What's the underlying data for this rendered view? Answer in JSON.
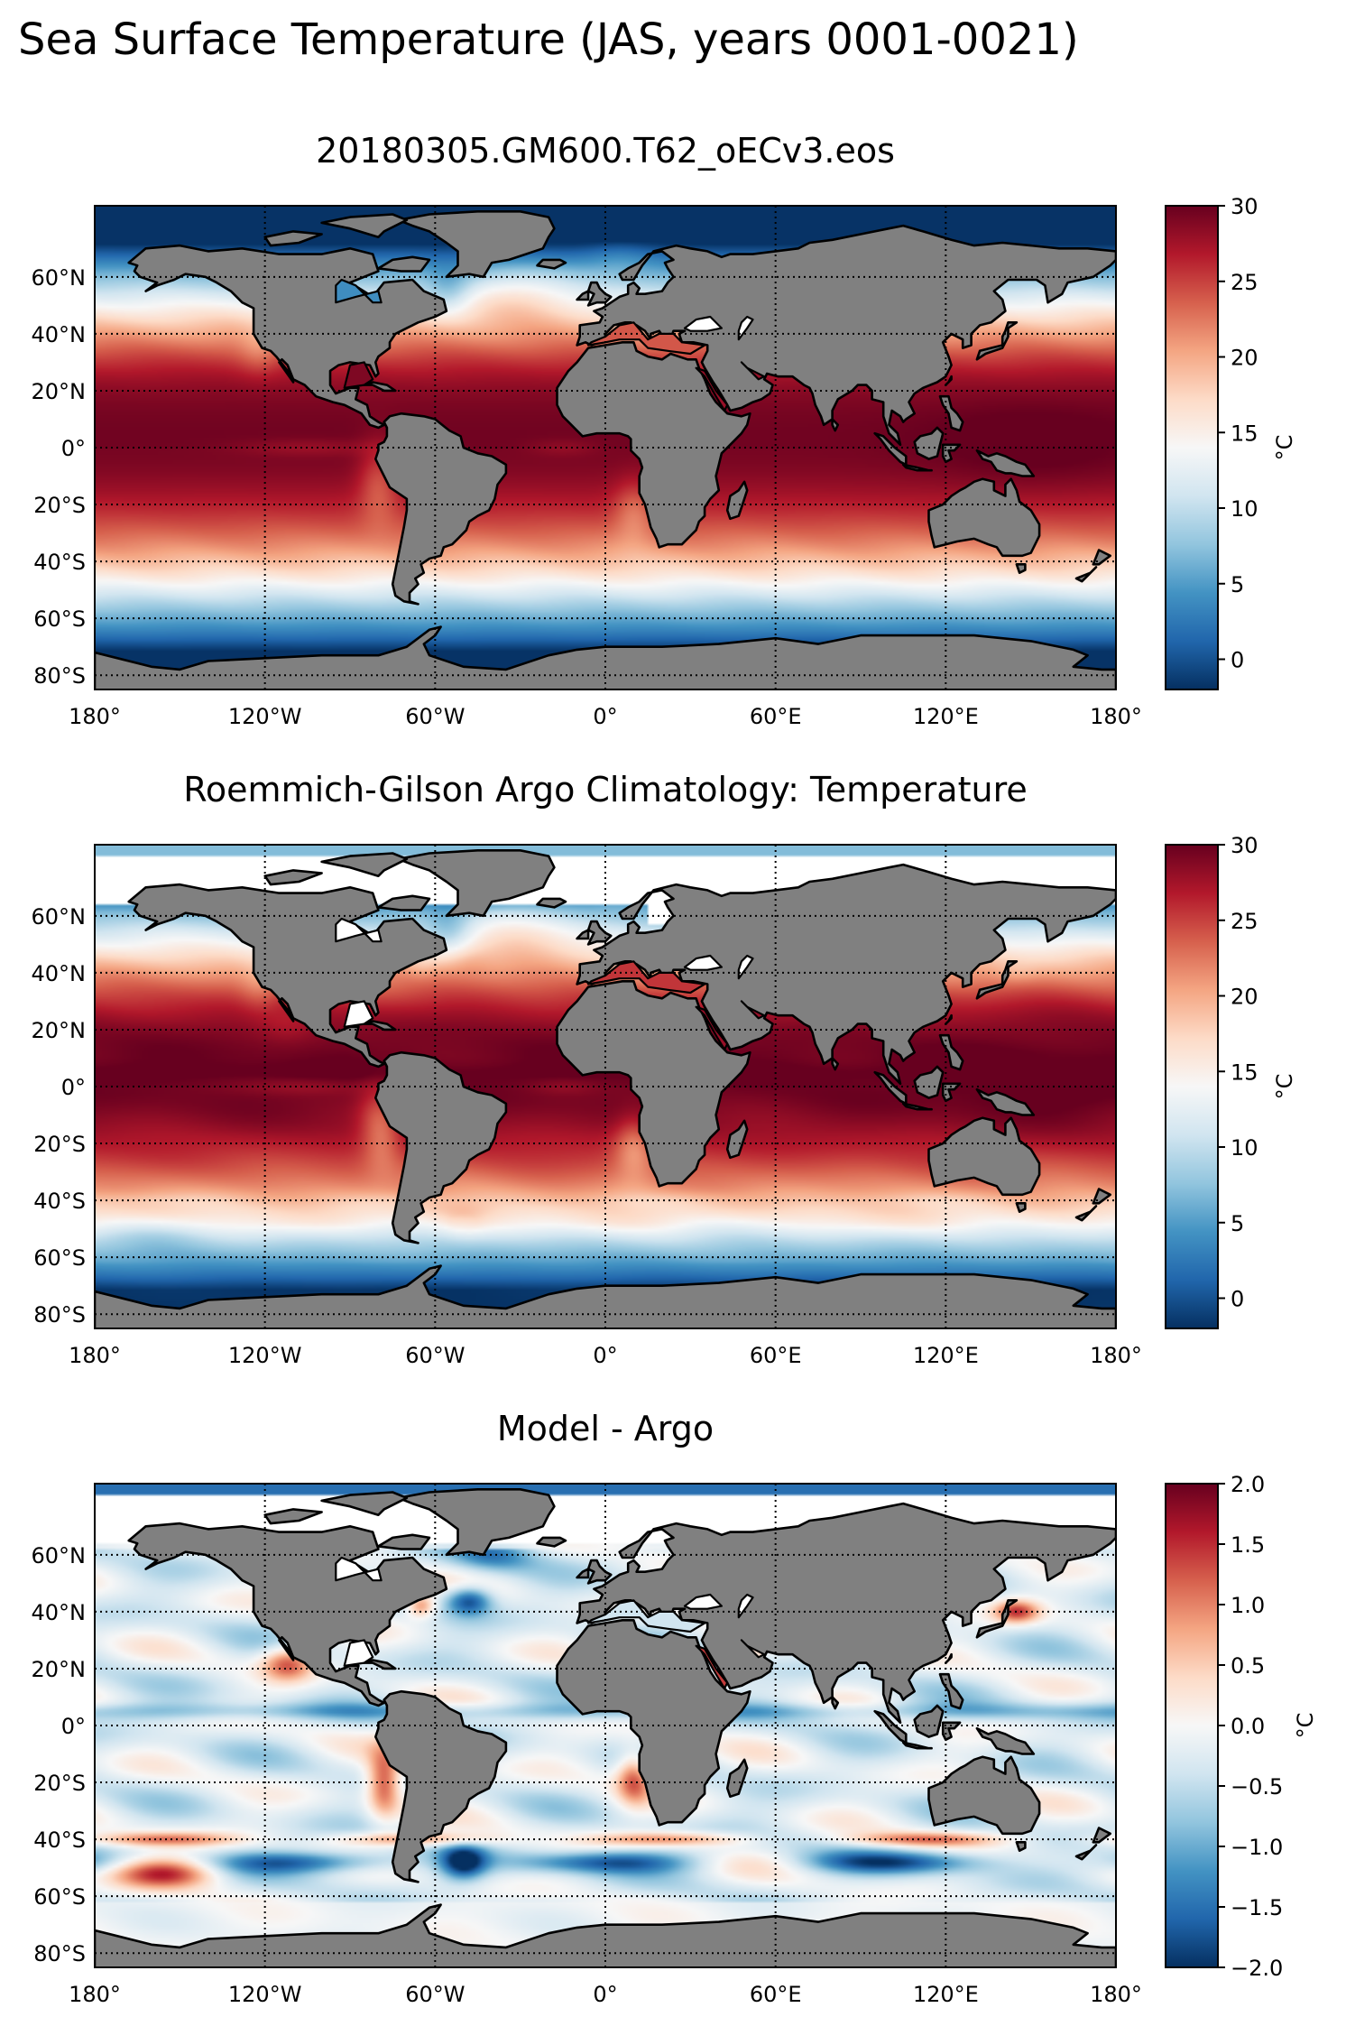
{
  "figure": {
    "suptitle": "Sea Surface Temperature (JAS, years 0001-0021)"
  },
  "colors": {
    "land": "#808080",
    "coast": "#000000",
    "gridline": "#000000",
    "rdbu_r": [
      "#053061",
      "#2166ac",
      "#4393c3",
      "#92c5de",
      "#d1e5f0",
      "#f7f7f7",
      "#fddbc7",
      "#f4a582",
      "#d6604d",
      "#b2182b",
      "#67001f"
    ]
  },
  "chart_data": [
    {
      "type": "heatmap",
      "title": "20180305.GM600.T62_oECv3.eos",
      "field": "model_sst",
      "colorbar": {
        "label": "°C",
        "range": [
          -2,
          30
        ],
        "ticks": [
          0,
          5,
          10,
          15,
          20,
          25,
          30
        ],
        "tick_labels": [
          "0",
          "5",
          "10",
          "15",
          "20",
          "25",
          "30"
        ],
        "cmap": "RdBu_r"
      },
      "xaxis": {
        "range": [
          -180,
          180
        ],
        "ticks": [
          -180,
          -120,
          -60,
          0,
          60,
          120,
          180
        ],
        "tick_labels": [
          "180°",
          "120°W",
          "60°W",
          "0°",
          "60°E",
          "120°E",
          "180°"
        ]
      },
      "yaxis": {
        "range": [
          -85,
          85
        ],
        "ticks": [
          60,
          40,
          20,
          0,
          -20,
          -40,
          -60,
          -80
        ],
        "tick_labels": [
          "60°N",
          "40°N",
          "20°N",
          "0°",
          "20°S",
          "40°S",
          "60°S",
          "80°S"
        ]
      },
      "grid": true
    },
    {
      "type": "heatmap",
      "title": "Roemmich-Gilson Argo Climatology: Temperature",
      "field": "argo_sst",
      "colorbar": {
        "label": "°C",
        "range": [
          -2,
          30
        ],
        "ticks": [
          0,
          5,
          10,
          15,
          20,
          25,
          30
        ],
        "tick_labels": [
          "0",
          "5",
          "10",
          "15",
          "20",
          "25",
          "30"
        ],
        "cmap": "RdBu_r"
      },
      "xaxis": {
        "range": [
          -180,
          180
        ],
        "ticks": [
          -180,
          -120,
          -60,
          0,
          60,
          120,
          180
        ],
        "tick_labels": [
          "180°",
          "120°W",
          "60°W",
          "0°",
          "60°E",
          "120°E",
          "180°"
        ]
      },
      "yaxis": {
        "range": [
          -85,
          85
        ],
        "ticks": [
          60,
          40,
          20,
          0,
          -20,
          -40,
          -60,
          -80
        ],
        "tick_labels": [
          "60°N",
          "40°N",
          "20°N",
          "0°",
          "20°S",
          "40°S",
          "60°S",
          "80°S"
        ]
      },
      "grid": true
    },
    {
      "type": "heatmap",
      "title": "Model - Argo",
      "field": "difference",
      "colorbar": {
        "label": "°C",
        "range": [
          -2,
          2
        ],
        "ticks": [
          -2,
          -1.5,
          -1,
          -0.5,
          0,
          0.5,
          1,
          1.5,
          2
        ],
        "tick_labels": [
          "−2.0",
          "−1.5",
          "−1.0",
          "−0.5",
          "0.0",
          "0.5",
          "1.0",
          "1.5",
          "2.0"
        ],
        "cmap": "RdBu_r"
      },
      "xaxis": {
        "range": [
          -180,
          180
        ],
        "ticks": [
          -180,
          -120,
          -60,
          0,
          60,
          120,
          180
        ],
        "tick_labels": [
          "180°",
          "120°W",
          "60°W",
          "0°",
          "60°E",
          "120°E",
          "180°"
        ]
      },
      "yaxis": {
        "range": [
          -85,
          85
        ],
        "ticks": [
          60,
          40,
          20,
          0,
          -20,
          -40,
          -60,
          -80
        ],
        "tick_labels": [
          "60°N",
          "40°N",
          "20°N",
          "0°",
          "20°S",
          "40°S",
          "60°S",
          "80°S"
        ]
      },
      "grid": true
    }
  ]
}
